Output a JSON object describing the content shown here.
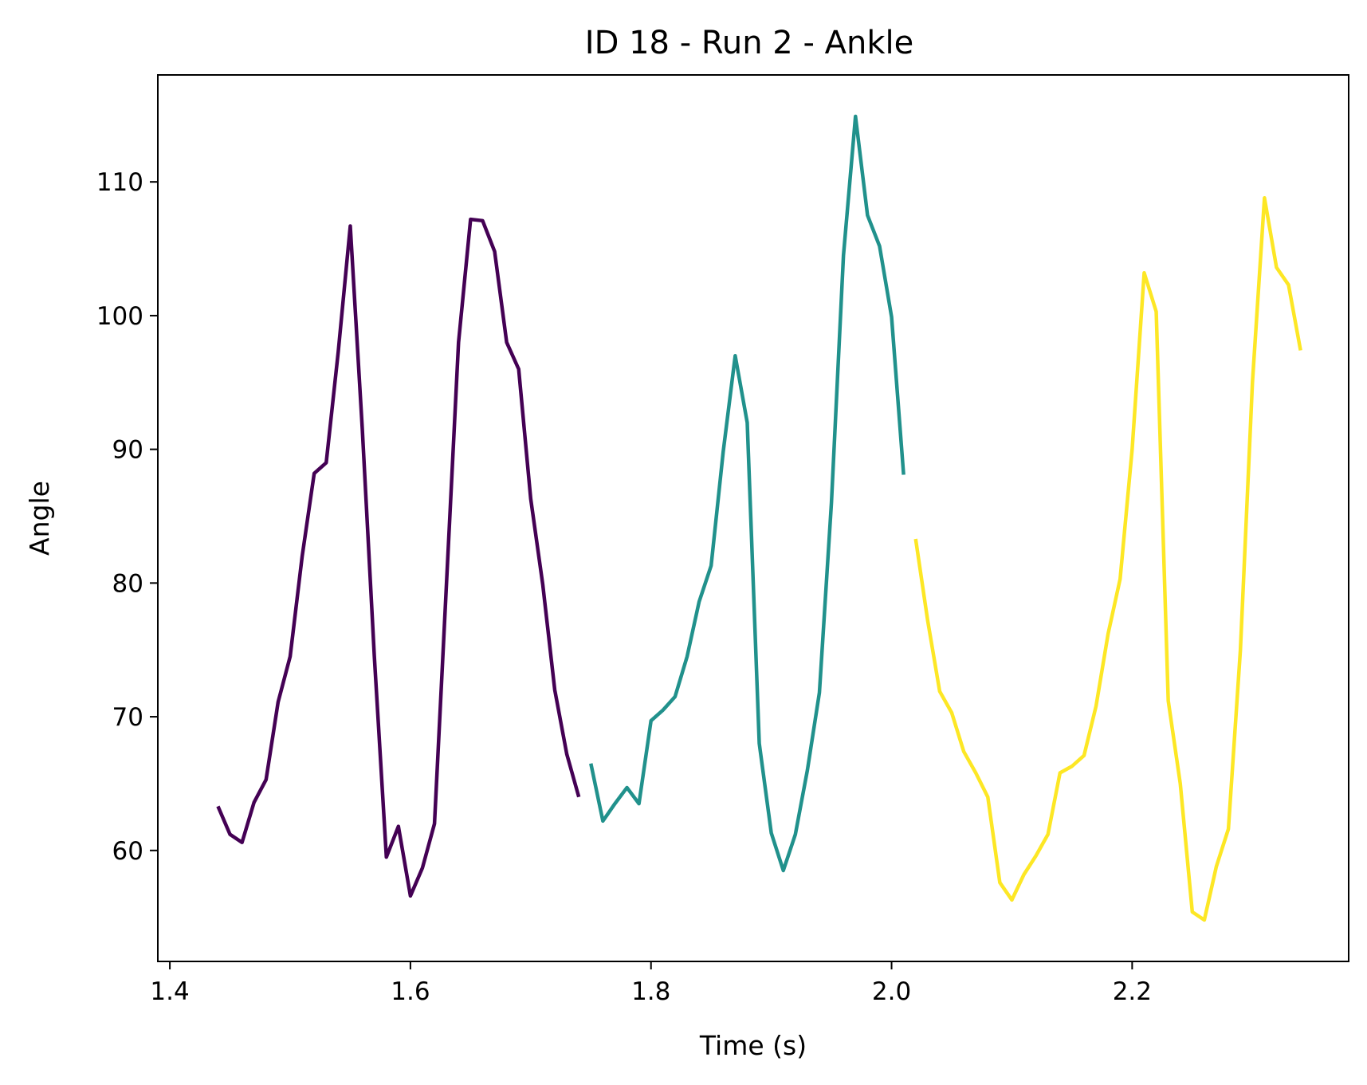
{
  "chart_data": {
    "type": "line",
    "title": "ID 18 - Run 2 - Ankle",
    "xlabel": "Time (s)",
    "ylabel": "Angle",
    "xlim": [
      1.39,
      2.38
    ],
    "ylim": [
      51.7,
      118
    ],
    "xticks": [
      {
        "value": 1.4,
        "label": "1.4"
      },
      {
        "value": 1.6,
        "label": "1.6"
      },
      {
        "value": 1.8,
        "label": "1.8"
      },
      {
        "value": 2.0,
        "label": "2.0"
      },
      {
        "value": 2.2,
        "label": "2.2"
      }
    ],
    "yticks": [
      {
        "value": 60,
        "label": "60"
      },
      {
        "value": 70,
        "label": "70"
      },
      {
        "value": 80,
        "label": "80"
      },
      {
        "value": 90,
        "label": "90"
      },
      {
        "value": 100,
        "label": "100"
      },
      {
        "value": 110,
        "label": "110"
      }
    ],
    "grid": false,
    "series": [
      {
        "color": "#440154",
        "x": [
          1.44,
          1.45,
          1.46,
          1.47,
          1.48,
          1.49,
          1.5,
          1.51,
          1.52,
          1.53,
          1.54,
          1.55,
          1.56,
          1.57,
          1.58,
          1.59,
          1.6,
          1.61,
          1.62,
          1.63,
          1.64,
          1.65,
          1.66,
          1.67,
          1.68,
          1.69,
          1.7,
          1.71,
          1.72,
          1.73,
          1.74
        ],
        "y": [
          63.3,
          61.2,
          60.6,
          63.6,
          65.3,
          71.1,
          74.5,
          82.0,
          88.2,
          89.0,
          97.3,
          106.7,
          91.5,
          74.5,
          59.5,
          61.8,
          56.6,
          58.7,
          62.0,
          80.0,
          98.0,
          107.2,
          107.1,
          104.8,
          98.0,
          96.0,
          86.3,
          79.9,
          72.0,
          67.2,
          64.0
        ]
      },
      {
        "color": "#21918c",
        "x": [
          1.75,
          1.76,
          1.77,
          1.78,
          1.79,
          1.8,
          1.81,
          1.82,
          1.83,
          1.84,
          1.85,
          1.86,
          1.87,
          1.88,
          1.89,
          1.9,
          1.91,
          1.92,
          1.93,
          1.94,
          1.95,
          1.96,
          1.97,
          1.98,
          1.99,
          2.0,
          2.01
        ],
        "y": [
          66.5,
          62.2,
          63.5,
          64.7,
          63.5,
          69.7,
          70.5,
          71.5,
          74.5,
          78.6,
          81.3,
          89.8,
          97.0,
          92.0,
          68.0,
          61.3,
          58.5,
          61.2,
          66.0,
          71.8,
          86.0,
          104.5,
          114.9,
          107.5,
          105.2,
          99.9,
          88.1
        ]
      },
      {
        "color": "#fde725",
        "x": [
          2.02,
          2.03,
          2.04,
          2.05,
          2.06,
          2.07,
          2.08,
          2.09,
          2.1,
          2.11,
          2.12,
          2.13,
          2.14,
          2.15,
          2.16,
          2.17,
          2.18,
          2.19,
          2.2,
          2.21,
          2.22,
          2.23,
          2.24,
          2.25,
          2.26,
          2.27,
          2.28,
          2.29,
          2.3,
          2.31,
          2.32,
          2.33,
          2.34
        ],
        "y": [
          83.3,
          77.2,
          71.9,
          70.3,
          67.4,
          65.8,
          64.0,
          57.6,
          56.3,
          58.2,
          59.6,
          61.2,
          65.8,
          66.3,
          67.1,
          70.8,
          76.2,
          80.3,
          90.0,
          103.2,
          100.3,
          71.2,
          65.0,
          55.4,
          54.8,
          58.8,
          61.6,
          75.0,
          95.0,
          108.8,
          103.6,
          102.3,
          97.4
        ]
      }
    ]
  }
}
